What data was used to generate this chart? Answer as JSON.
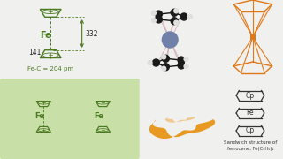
{
  "bg_color": "#f0f0ee",
  "green": "#4a7a20",
  "orange": "#e07818",
  "fe_label": "Fe",
  "cp_label": "Cp",
  "dist_332": "332",
  "dist_141": "141",
  "fe_c_label": "Fe-C = 204 pm",
  "sandwich_title": "Sandwich structure of",
  "sandwich_formula": "ferrocene, Fe(C₅H₅)₂",
  "panel_bg": "#c8dfa8"
}
